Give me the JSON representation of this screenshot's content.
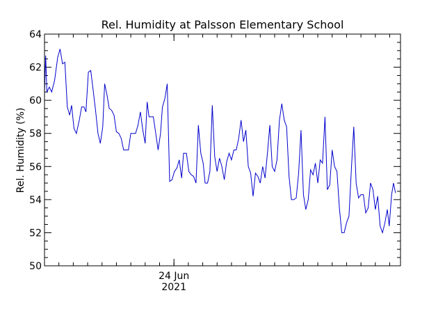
{
  "chart_data": {
    "type": "line",
    "title": "Rel. Humidity at Palsson Elementary School",
    "xlabel": "",
    "ylabel": "Rel. Humidity (%)",
    "ylim": [
      50,
      64
    ],
    "yticks": [
      50,
      52,
      54,
      56,
      58,
      60,
      62,
      64
    ],
    "xticks": [
      {
        "hour": 54,
        "label_line1": "24 Jun",
        "label_line2": "2021"
      }
    ],
    "x_units": "hours from start of record",
    "xlim": [
      0,
      144
    ],
    "grid": false,
    "line_color": "#0000cc",
    "series": [
      {
        "name": "",
        "points": [
          [
            0,
            60.5
          ],
          [
            0.5,
            62.7
          ],
          [
            1.0,
            60.5
          ],
          [
            2.0,
            60.8
          ],
          [
            3.0,
            60.5
          ],
          [
            4.2,
            61.2
          ],
          [
            5.5,
            62.6
          ],
          [
            6.5,
            63.1
          ],
          [
            7.5,
            62.2
          ],
          [
            8.5,
            62.3
          ],
          [
            9.5,
            59.6
          ],
          [
            10.5,
            59.1
          ],
          [
            11.3,
            59.7
          ],
          [
            12.3,
            58.3
          ],
          [
            13.3,
            58.0
          ],
          [
            14.5,
            58.8
          ],
          [
            15.5,
            59.6
          ],
          [
            16.5,
            59.6
          ],
          [
            17.3,
            59.3
          ],
          [
            18.3,
            61.7
          ],
          [
            19.3,
            61.8
          ],
          [
            20.3,
            60.6
          ],
          [
            21.3,
            59.4
          ],
          [
            22.3,
            58.0
          ],
          [
            23.3,
            57.4
          ],
          [
            24.3,
            58.4
          ],
          [
            25.1,
            61.0
          ],
          [
            26.1,
            60.3
          ],
          [
            27.0,
            59.5
          ],
          [
            28.0,
            59.4
          ],
          [
            29.0,
            59.1
          ],
          [
            30.0,
            58.1
          ],
          [
            31.0,
            58.0
          ],
          [
            32.0,
            57.7
          ],
          [
            33.0,
            57.0
          ],
          [
            34.0,
            57.0
          ],
          [
            35.0,
            57.0
          ],
          [
            36.0,
            58.0
          ],
          [
            37.0,
            58.0
          ],
          [
            38.0,
            58.0
          ],
          [
            39.0,
            58.5
          ],
          [
            40.0,
            59.3
          ],
          [
            41.0,
            58.2
          ],
          [
            42.0,
            57.4
          ],
          [
            42.8,
            59.9
          ],
          [
            43.6,
            59.0
          ],
          [
            44.4,
            59.0
          ],
          [
            45.4,
            59.0
          ],
          [
            46.4,
            58.0
          ],
          [
            47.4,
            57.0
          ],
          [
            48.4,
            58.0
          ],
          [
            49.2,
            59.6
          ],
          [
            50.2,
            60.1
          ],
          [
            51.2,
            61.0
          ],
          [
            52.2,
            55.1
          ],
          [
            53.2,
            55.2
          ],
          [
            54.2,
            55.7
          ],
          [
            55.2,
            55.9
          ],
          [
            56.2,
            56.4
          ],
          [
            57.2,
            55.3
          ],
          [
            58.0,
            56.8
          ],
          [
            59.2,
            56.8
          ],
          [
            60.2,
            55.7
          ],
          [
            61.2,
            55.5
          ],
          [
            62.2,
            55.4
          ],
          [
            63.2,
            55.0
          ],
          [
            64.2,
            58.5
          ],
          [
            65.2,
            56.8
          ],
          [
            66.2,
            56.2
          ],
          [
            67.0,
            55.0
          ],
          [
            68.0,
            55.0
          ],
          [
            69.0,
            55.7
          ],
          [
            70.0,
            59.7
          ],
          [
            71.0,
            56.6
          ],
          [
            72.0,
            55.7
          ],
          [
            73.0,
            56.5
          ],
          [
            74.0,
            56.0
          ],
          [
            75.0,
            55.2
          ],
          [
            76.0,
            56.3
          ],
          [
            77.0,
            56.8
          ],
          [
            78.0,
            56.4
          ],
          [
            79.0,
            57.0
          ],
          [
            80.0,
            57.0
          ],
          [
            81.0,
            57.7
          ],
          [
            82.0,
            58.8
          ],
          [
            83.0,
            57.5
          ],
          [
            84.0,
            58.2
          ],
          [
            85.0,
            56.0
          ],
          [
            86.0,
            55.6
          ],
          [
            87.0,
            54.2
          ],
          [
            88.0,
            55.6
          ],
          [
            89.0,
            55.4
          ],
          [
            90.0,
            55.0
          ],
          [
            91.0,
            56.0
          ],
          [
            92.0,
            55.3
          ],
          [
            93.0,
            56.8
          ],
          [
            94.0,
            58.5
          ],
          [
            95.0,
            56.0
          ],
          [
            96.0,
            55.7
          ],
          [
            97.0,
            56.4
          ],
          [
            98.0,
            58.8
          ],
          [
            99.0,
            59.8
          ],
          [
            100.0,
            58.8
          ],
          [
            101.0,
            58.4
          ],
          [
            102.0,
            55.4
          ],
          [
            103.0,
            54.0
          ],
          [
            104.0,
            54.0
          ],
          [
            105.0,
            54.1
          ],
          [
            106.0,
            55.6
          ],
          [
            107.0,
            58.2
          ],
          [
            108.0,
            54.3
          ],
          [
            109.0,
            53.4
          ],
          [
            110.0,
            54.0
          ],
          [
            111.0,
            55.8
          ],
          [
            112.0,
            55.5
          ],
          [
            113.0,
            56.2
          ],
          [
            114.0,
            55.0
          ],
          [
            115.0,
            56.4
          ],
          [
            116.0,
            56.2
          ],
          [
            117.0,
            59.0
          ],
          [
            118.0,
            54.6
          ],
          [
            119.0,
            54.9
          ],
          [
            120.0,
            57.0
          ],
          [
            121.0,
            56.0
          ],
          [
            122.0,
            55.7
          ],
          [
            123.0,
            53.5
          ],
          [
            124.0,
            52.0
          ],
          [
            125.0,
            52.0
          ],
          [
            126.0,
            52.6
          ],
          [
            127.0,
            53.0
          ],
          [
            128.0,
            55.8
          ],
          [
            129.0,
            58.4
          ],
          [
            130.0,
            55.0
          ],
          [
            131.0,
            54.1
          ],
          [
            132.0,
            54.3
          ],
          [
            133.0,
            54.3
          ],
          [
            134.0,
            53.2
          ],
          [
            135.0,
            53.5
          ],
          [
            136.0,
            55.0
          ],
          [
            137.0,
            54.6
          ],
          [
            138.0,
            53.4
          ],
          [
            139.0,
            54.2
          ],
          [
            140.0,
            52.4
          ],
          [
            141.0,
            52.0
          ],
          [
            142.0,
            52.6
          ],
          [
            143.0,
            53.4
          ],
          [
            143.8,
            52.4
          ],
          [
            144.8,
            54.3
          ],
          [
            145.6,
            55.0
          ],
          [
            146.4,
            54.4
          ]
        ]
      }
    ]
  }
}
